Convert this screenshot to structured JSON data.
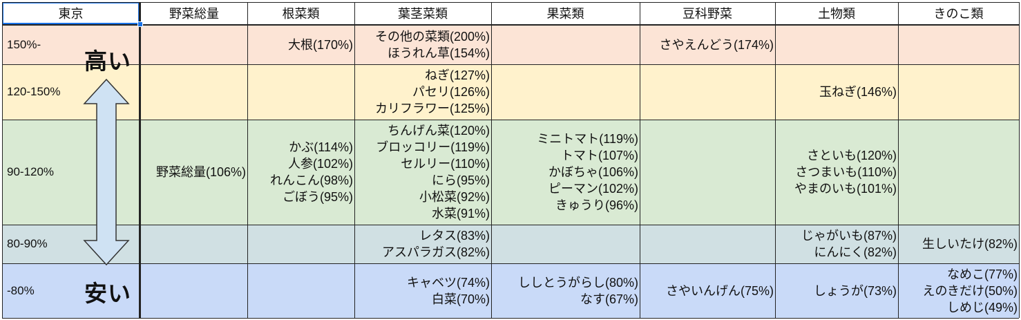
{
  "header": {
    "columns": [
      "東京",
      "野菜総量",
      "根菜類",
      "葉茎菜類",
      "果菜類",
      "豆科野菜",
      "土物類",
      "きのこ類"
    ]
  },
  "legend": {
    "high_label": "高い",
    "low_label": "安い"
  },
  "rows": [
    {
      "label": "150%-",
      "color": "#fce4d6",
      "cells": [
        [],
        [
          "大根(170%)"
        ],
        [
          "その他の菜類(200%)",
          "ほうれん草(154%)"
        ],
        [],
        [
          "さやえんどう(174%)"
        ],
        [],
        []
      ]
    },
    {
      "label": "120-150%",
      "color": "#fff2cc",
      "cells": [
        [],
        [],
        [
          "ねぎ(127%)",
          "パセリ(126%)",
          "カリフラワー(125%)"
        ],
        [],
        [],
        [
          "玉ねぎ(146%)"
        ],
        []
      ]
    },
    {
      "label": "90-120%",
      "color": "#d9ead3",
      "cells": [
        [
          "野菜総量(106%)"
        ],
        [
          "かぶ(114%)",
          "人参(102%)",
          "れんこん(98%)",
          "ごぼう(95%)"
        ],
        [
          "ちんげん菜(120%)",
          "ブロッコリー(119%)",
          "セルリー(110%)",
          "にら(95%)",
          "小松菜(92%)",
          "水菜(91%)"
        ],
        [
          "ミニトマト(119%)",
          "トマト(107%)",
          "かぼちゃ(106%)",
          "ピーマン(102%)",
          "きゅうり(96%)"
        ],
        [],
        [
          "さといも(120%)",
          "さつまいも(110%)",
          "やまのいも(101%)"
        ],
        []
      ]
    },
    {
      "label": "80-90%",
      "color": "#d0e0e3",
      "cells": [
        [],
        [],
        [
          "レタス(83%)",
          "アスパラガス(82%)"
        ],
        [],
        [],
        [
          "じゃがいも(87%)",
          "にんにく(82%)"
        ],
        [
          "生しいたけ(82%)"
        ]
      ]
    },
    {
      "label": "-80%",
      "color": "#c9daf8",
      "cells": [
        [],
        [],
        [
          "キャベツ(74%)",
          "白菜(70%)"
        ],
        [
          "ししとうがらし(80%)",
          "なす(67%)"
        ],
        [
          "さやいんげん(75%)"
        ],
        [
          "しょうが(73%)"
        ],
        [
          "なめこ(77%)",
          "えのきだけ(50%)",
          "しめじ(49%)"
        ]
      ]
    }
  ],
  "colors": {
    "gridline": "#222222",
    "selection": "#1a73e8",
    "arrow_fill": "#cfe2f3",
    "arrow_stroke": "#333333"
  }
}
